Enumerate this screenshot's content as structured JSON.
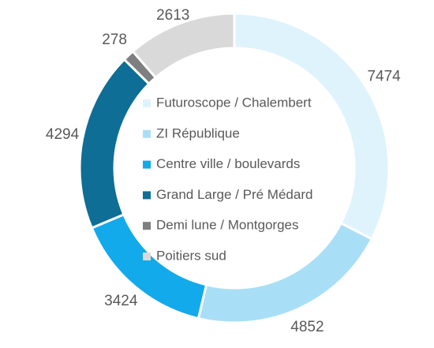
{
  "chart_data": {
    "type": "donut",
    "categories": [
      "Futuroscope / Chalembert",
      "ZI République",
      "Centre ville / boulevards",
      "Grand Large / Pré Médard",
      "Demi lune / Montgorges",
      "Poitiers sud"
    ],
    "values": [
      7474,
      4852,
      3424,
      4294,
      278,
      2613
    ],
    "colors": [
      "#dff3fc",
      "#a9dff6",
      "#12aaea",
      "#0e6e96",
      "#7f7f7f",
      "#d9d9d9"
    ],
    "legend": "center"
  }
}
